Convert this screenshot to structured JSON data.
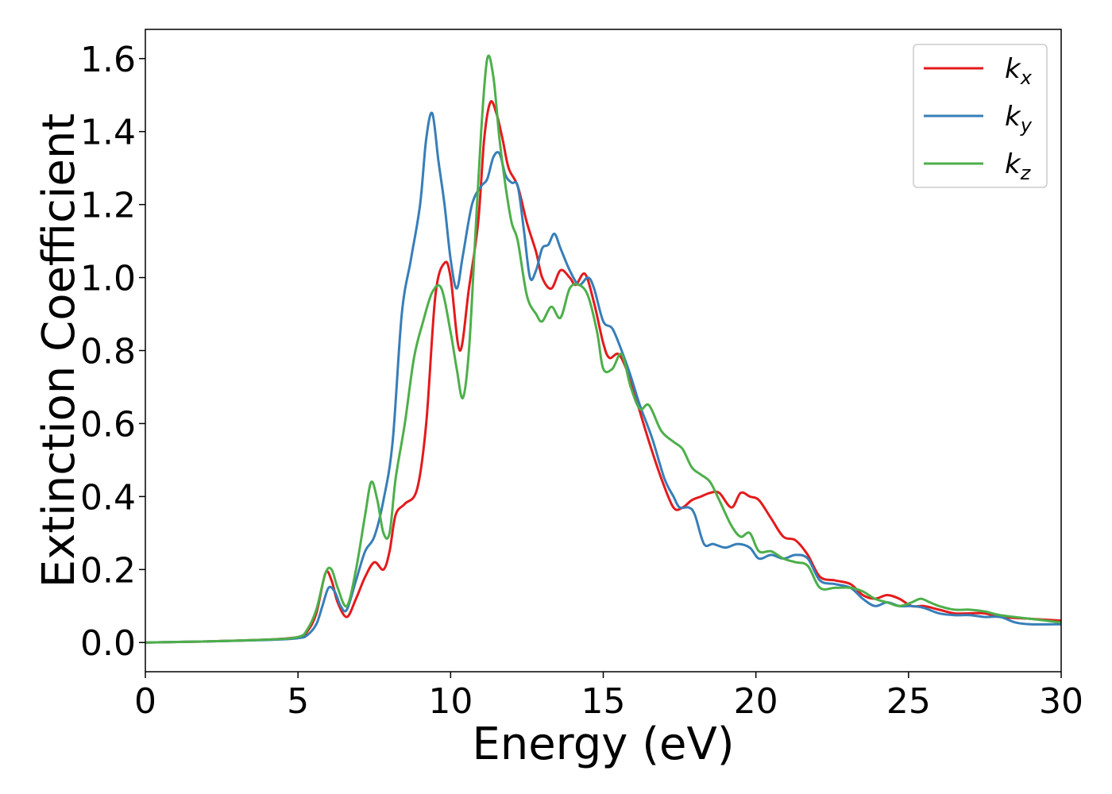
{
  "chart_data": {
    "type": "line",
    "title": "",
    "xlabel": "Energy (eV)",
    "ylabel": "Extinction Coefficient",
    "xlim": [
      0,
      30
    ],
    "ylim": [
      -0.08,
      1.68
    ],
    "xticks": [
      0,
      5,
      10,
      15,
      20,
      25,
      30
    ],
    "xtick_labels": [
      "0",
      "5",
      "10",
      "15",
      "20",
      "25",
      "30"
    ],
    "yticks": [
      0.0,
      0.2,
      0.4,
      0.6,
      0.8,
      1.0,
      1.2,
      1.4,
      1.6
    ],
    "ytick_labels": [
      "0.0",
      "0.2",
      "0.4",
      "0.6",
      "0.8",
      "1.0",
      "1.2",
      "1.4",
      "1.6"
    ],
    "grid": false,
    "legend_position": "top-right",
    "series": [
      {
        "name": "k_x",
        "label_base": "k",
        "label_sub": "x",
        "color": "#e41a1c",
        "x": [
          0,
          2,
          4,
          5,
          5.3,
          5.6,
          5.9,
          6.1,
          6.3,
          6.6,
          6.9,
          7.2,
          7.5,
          7.8,
          8.0,
          8.2,
          8.5,
          8.9,
          9.2,
          9.5,
          9.8,
          10.0,
          10.3,
          10.6,
          10.9,
          11.1,
          11.3,
          11.5,
          11.7,
          11.9,
          12.2,
          12.5,
          12.8,
          13.0,
          13.3,
          13.6,
          13.9,
          14.1,
          14.4,
          14.7,
          15.0,
          15.2,
          15.5,
          15.8,
          16.1,
          16.5,
          16.9,
          17.3,
          17.6,
          17.9,
          18.2,
          18.5,
          18.8,
          19.2,
          19.5,
          19.8,
          20.1,
          20.5,
          20.9,
          21.3,
          21.7,
          22.1,
          22.6,
          23.1,
          23.5,
          23.9,
          24.3,
          24.7,
          25.1,
          25.5,
          26,
          26.5,
          27,
          27.5,
          28,
          29,
          30
        ],
        "y": [
          0.0,
          0.003,
          0.008,
          0.015,
          0.03,
          0.08,
          0.19,
          0.17,
          0.11,
          0.07,
          0.12,
          0.18,
          0.22,
          0.2,
          0.25,
          0.35,
          0.38,
          0.42,
          0.6,
          0.95,
          1.04,
          1.0,
          0.8,
          0.97,
          1.15,
          1.38,
          1.48,
          1.45,
          1.38,
          1.3,
          1.25,
          1.15,
          1.07,
          1.0,
          0.97,
          1.02,
          1.0,
          0.98,
          1.01,
          0.93,
          0.82,
          0.78,
          0.79,
          0.74,
          0.66,
          0.55,
          0.45,
          0.37,
          0.37,
          0.39,
          0.4,
          0.41,
          0.41,
          0.37,
          0.41,
          0.4,
          0.39,
          0.34,
          0.29,
          0.28,
          0.24,
          0.18,
          0.17,
          0.16,
          0.13,
          0.12,
          0.13,
          0.12,
          0.1,
          0.1,
          0.09,
          0.08,
          0.08,
          0.08,
          0.07,
          0.065,
          0.06
        ]
      },
      {
        "name": "k_y",
        "label_base": "k",
        "label_sub": "y",
        "color": "#377eb8",
        "x": [
          0,
          2,
          4,
          5,
          5.3,
          5.6,
          5.8,
          6.0,
          6.2,
          6.4,
          6.6,
          6.9,
          7.2,
          7.5,
          7.8,
          8.1,
          8.4,
          8.7,
          9.0,
          9.2,
          9.4,
          9.6,
          9.8,
          10.0,
          10.2,
          10.4,
          10.7,
          11.0,
          11.2,
          11.4,
          11.6,
          11.8,
          12.0,
          12.2,
          12.4,
          12.6,
          12.8,
          13.0,
          13.2,
          13.4,
          13.6,
          13.9,
          14.2,
          14.5,
          14.7,
          15.0,
          15.3,
          15.6,
          15.9,
          16.2,
          16.6,
          17.0,
          17.3,
          17.5,
          17.8,
          18.0,
          18.3,
          18.6,
          19.0,
          19.4,
          19.8,
          20.1,
          20.5,
          20.9,
          21.3,
          21.7,
          22.1,
          22.6,
          23.1,
          23.5,
          23.9,
          24.3,
          24.7,
          25.1,
          25.5,
          26,
          26.5,
          27,
          27.5,
          28,
          28.5,
          29,
          30
        ],
        "y": [
          0.0,
          0.003,
          0.007,
          0.012,
          0.02,
          0.05,
          0.1,
          0.15,
          0.14,
          0.1,
          0.09,
          0.17,
          0.25,
          0.29,
          0.39,
          0.55,
          0.9,
          1.05,
          1.2,
          1.38,
          1.45,
          1.32,
          1.2,
          1.05,
          0.97,
          1.06,
          1.2,
          1.25,
          1.27,
          1.33,
          1.34,
          1.28,
          1.26,
          1.25,
          1.13,
          1.0,
          1.02,
          1.08,
          1.09,
          1.12,
          1.08,
          1.02,
          0.98,
          1.0,
          0.97,
          0.88,
          0.86,
          0.8,
          0.73,
          0.65,
          0.56,
          0.45,
          0.4,
          0.37,
          0.37,
          0.35,
          0.27,
          0.27,
          0.26,
          0.27,
          0.26,
          0.23,
          0.24,
          0.23,
          0.24,
          0.23,
          0.17,
          0.16,
          0.15,
          0.12,
          0.1,
          0.11,
          0.1,
          0.1,
          0.095,
          0.08,
          0.075,
          0.075,
          0.07,
          0.07,
          0.055,
          0.05,
          0.05
        ]
      },
      {
        "name": "k_z",
        "label_base": "k",
        "label_sub": "z",
        "color": "#4daf4a",
        "x": [
          0,
          2,
          4,
          5,
          5.3,
          5.6,
          5.9,
          6.1,
          6.3,
          6.6,
          6.9,
          7.2,
          7.4,
          7.6,
          7.8,
          8.0,
          8.2,
          8.5,
          8.8,
          9.1,
          9.4,
          9.7,
          10.0,
          10.2,
          10.4,
          10.6,
          10.8,
          11.0,
          11.2,
          11.4,
          11.6,
          11.8,
          12.0,
          12.2,
          12.5,
          12.8,
          13.0,
          13.3,
          13.6,
          13.9,
          14.2,
          14.5,
          14.8,
          15.0,
          15.3,
          15.6,
          15.9,
          16.2,
          16.5,
          16.9,
          17.3,
          17.6,
          17.9,
          18.2,
          18.5,
          18.8,
          19.2,
          19.5,
          19.8,
          20.1,
          20.5,
          20.9,
          21.3,
          21.7,
          22.1,
          22.6,
          23.1,
          23.5,
          23.9,
          24.3,
          24.7,
          25.1,
          25.4,
          25.7,
          26,
          26.5,
          27,
          27.5,
          28,
          29,
          30
        ],
        "y": [
          0.0,
          0.003,
          0.008,
          0.015,
          0.035,
          0.09,
          0.19,
          0.2,
          0.15,
          0.1,
          0.2,
          0.35,
          0.44,
          0.39,
          0.3,
          0.3,
          0.45,
          0.6,
          0.78,
          0.88,
          0.96,
          0.97,
          0.85,
          0.75,
          0.67,
          0.8,
          1.1,
          1.4,
          1.6,
          1.55,
          1.38,
          1.25,
          1.15,
          1.1,
          0.95,
          0.9,
          0.88,
          0.92,
          0.89,
          0.97,
          0.98,
          0.95,
          0.85,
          0.75,
          0.75,
          0.79,
          0.7,
          0.64,
          0.65,
          0.58,
          0.55,
          0.53,
          0.48,
          0.46,
          0.44,
          0.39,
          0.32,
          0.29,
          0.3,
          0.25,
          0.25,
          0.23,
          0.22,
          0.21,
          0.15,
          0.15,
          0.15,
          0.14,
          0.12,
          0.11,
          0.1,
          0.11,
          0.12,
          0.11,
          0.1,
          0.09,
          0.09,
          0.085,
          0.075,
          0.065,
          0.055
        ]
      }
    ]
  }
}
